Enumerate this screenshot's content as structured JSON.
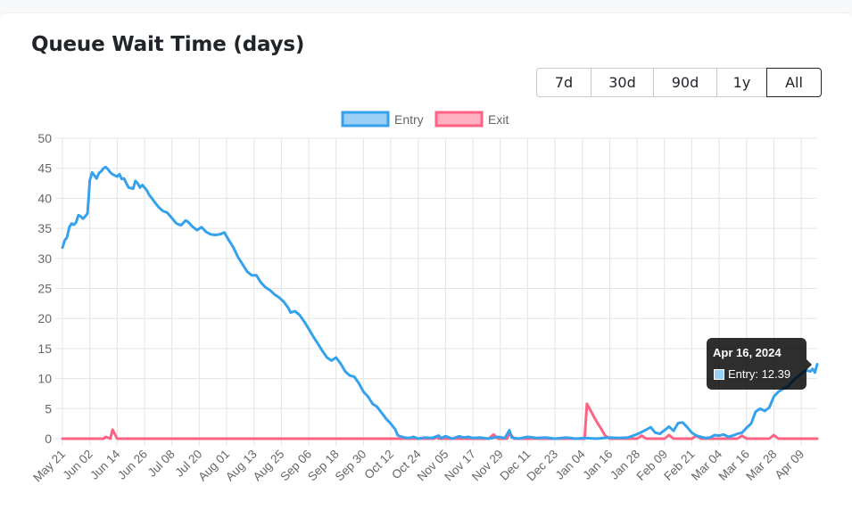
{
  "title": "Queue Wait Time (days)",
  "range_buttons": [
    {
      "label": "7d",
      "active": false
    },
    {
      "label": "30d",
      "active": false
    },
    {
      "label": "90d",
      "active": false
    },
    {
      "label": "1y",
      "active": false
    },
    {
      "label": "All",
      "active": true
    }
  ],
  "tooltip": {
    "title": "Apr 16, 2024",
    "body": "Entry: 12.39"
  },
  "chart_data": {
    "type": "line",
    "title": "",
    "xlabel": "",
    "ylabel": "",
    "ylim": [
      0,
      50
    ],
    "yticks": [
      0,
      5,
      10,
      15,
      20,
      25,
      30,
      35,
      40,
      45,
      50
    ],
    "grid": true,
    "legend_position": "top",
    "x_start": "2023-05-21",
    "x_end": "2024-04-16",
    "x_ticks": [
      "May 21",
      "Jun 02",
      "Jun 14",
      "Jun 26",
      "Jul 08",
      "Jul 20",
      "Aug 01",
      "Aug 13",
      "Aug 25",
      "Sep 06",
      "Sep 18",
      "Sep 30",
      "Oct 12",
      "Oct 24",
      "Nov 05",
      "Nov 17",
      "Nov 29",
      "Dec 11",
      "Dec 23",
      "Jan 04",
      "Jan 16",
      "Jan 28",
      "Feb 09",
      "Feb 21",
      "Mar 04",
      "Mar 16",
      "Mar 28",
      "Apr 09"
    ],
    "series": [
      {
        "name": "Entry",
        "color": "#36a2eb",
        "fill": "#9ad0f5",
        "points": [
          [
            "2023-05-21",
            31.8
          ],
          [
            "2023-05-22",
            33.0
          ],
          [
            "2023-05-23",
            33.5
          ],
          [
            "2023-05-24",
            35.2
          ],
          [
            "2023-05-25",
            35.8
          ],
          [
            "2023-05-26",
            35.6
          ],
          [
            "2023-05-27",
            36.0
          ],
          [
            "2023-05-28",
            37.2
          ],
          [
            "2023-05-29",
            37.0
          ],
          [
            "2023-05-30",
            36.6
          ],
          [
            "2023-05-31",
            37.0
          ],
          [
            "2023-06-01",
            37.5
          ],
          [
            "2023-06-02",
            43.0
          ],
          [
            "2023-06-03",
            44.3
          ],
          [
            "2023-06-04",
            43.8
          ],
          [
            "2023-06-05",
            43.3
          ],
          [
            "2023-06-06",
            44.2
          ],
          [
            "2023-06-07",
            44.5
          ],
          [
            "2023-06-08",
            45.0
          ],
          [
            "2023-06-09",
            45.2
          ],
          [
            "2023-06-10",
            44.8
          ],
          [
            "2023-06-11",
            44.3
          ],
          [
            "2023-06-12",
            44.0
          ],
          [
            "2023-06-13",
            43.8
          ],
          [
            "2023-06-14",
            43.6
          ],
          [
            "2023-06-15",
            44.0
          ],
          [
            "2023-06-16",
            43.2
          ],
          [
            "2023-06-17",
            43.3
          ],
          [
            "2023-06-18",
            42.5
          ],
          [
            "2023-06-19",
            41.8
          ],
          [
            "2023-06-20",
            41.7
          ],
          [
            "2023-06-21",
            41.6
          ],
          [
            "2023-06-22",
            42.9
          ],
          [
            "2023-06-23",
            42.5
          ],
          [
            "2023-06-24",
            41.8
          ],
          [
            "2023-06-25",
            42.2
          ],
          [
            "2023-06-26",
            41.8
          ],
          [
            "2023-06-27",
            41.3
          ],
          [
            "2023-06-28",
            40.6
          ],
          [
            "2023-06-29",
            40.1
          ],
          [
            "2023-06-30",
            39.6
          ],
          [
            "2023-07-02",
            38.6
          ],
          [
            "2023-07-04",
            37.9
          ],
          [
            "2023-07-06",
            37.6
          ],
          [
            "2023-07-08",
            36.7
          ],
          [
            "2023-07-10",
            35.8
          ],
          [
            "2023-07-12",
            35.5
          ],
          [
            "2023-07-14",
            36.3
          ],
          [
            "2023-07-15",
            36.1
          ],
          [
            "2023-07-17",
            35.3
          ],
          [
            "2023-07-19",
            34.7
          ],
          [
            "2023-07-21",
            35.2
          ],
          [
            "2023-07-23",
            34.4
          ],
          [
            "2023-07-25",
            34.0
          ],
          [
            "2023-07-27",
            33.9
          ],
          [
            "2023-07-29",
            34.0
          ],
          [
            "2023-07-31",
            34.3
          ],
          [
            "2023-08-02",
            33.0
          ],
          [
            "2023-08-04",
            31.8
          ],
          [
            "2023-08-06",
            30.2
          ],
          [
            "2023-08-08",
            29.0
          ],
          [
            "2023-08-10",
            27.8
          ],
          [
            "2023-08-12",
            27.2
          ],
          [
            "2023-08-14",
            27.2
          ],
          [
            "2023-08-16",
            26.0
          ],
          [
            "2023-08-18",
            25.2
          ],
          [
            "2023-08-20",
            24.7
          ],
          [
            "2023-08-22",
            24.0
          ],
          [
            "2023-08-24",
            23.5
          ],
          [
            "2023-08-26",
            22.8
          ],
          [
            "2023-08-28",
            21.8
          ],
          [
            "2023-08-29",
            21.0
          ],
          [
            "2023-08-31",
            21.2
          ],
          [
            "2023-09-02",
            20.6
          ],
          [
            "2023-09-04",
            19.5
          ],
          [
            "2023-09-06",
            18.3
          ],
          [
            "2023-09-08",
            17.0
          ],
          [
            "2023-09-10",
            15.8
          ],
          [
            "2023-09-12",
            14.6
          ],
          [
            "2023-09-14",
            13.5
          ],
          [
            "2023-09-16",
            13.0
          ],
          [
            "2023-09-18",
            13.5
          ],
          [
            "2023-09-20",
            12.5
          ],
          [
            "2023-09-22",
            11.2
          ],
          [
            "2023-09-24",
            10.5
          ],
          [
            "2023-09-26",
            10.3
          ],
          [
            "2023-09-28",
            9.2
          ],
          [
            "2023-09-30",
            7.8
          ],
          [
            "2023-10-02",
            7.0
          ],
          [
            "2023-10-04",
            5.8
          ],
          [
            "2023-10-06",
            5.3
          ],
          [
            "2023-10-08",
            4.3
          ],
          [
            "2023-10-10",
            3.3
          ],
          [
            "2023-10-12",
            2.5
          ],
          [
            "2023-10-14",
            1.5
          ],
          [
            "2023-10-15",
            0.6
          ],
          [
            "2023-10-16",
            0.4
          ],
          [
            "2023-10-18",
            0.2
          ],
          [
            "2023-10-20",
            0.1
          ],
          [
            "2023-10-22",
            0.3
          ],
          [
            "2023-10-24",
            0.0
          ],
          [
            "2023-10-27",
            0.2
          ],
          [
            "2023-10-30",
            0.1
          ],
          [
            "2023-11-02",
            0.5
          ],
          [
            "2023-11-03",
            0.1
          ],
          [
            "2023-11-05",
            0.4
          ],
          [
            "2023-11-08",
            0.0
          ],
          [
            "2023-11-11",
            0.4
          ],
          [
            "2023-11-13",
            0.2
          ],
          [
            "2023-11-15",
            0.3
          ],
          [
            "2023-11-17",
            0.1
          ],
          [
            "2023-11-20",
            0.2
          ],
          [
            "2023-11-24",
            0.0
          ],
          [
            "2023-11-28",
            0.3
          ],
          [
            "2023-12-01",
            0.1
          ],
          [
            "2023-12-03",
            1.4
          ],
          [
            "2023-12-04",
            0.2
          ],
          [
            "2023-12-07",
            0.0
          ],
          [
            "2023-12-11",
            0.3
          ],
          [
            "2023-12-15",
            0.1
          ],
          [
            "2023-12-19",
            0.2
          ],
          [
            "2023-12-23",
            0.0
          ],
          [
            "2023-12-28",
            0.2
          ],
          [
            "2024-01-01",
            0.0
          ],
          [
            "2024-01-05",
            0.1
          ],
          [
            "2024-01-10",
            0.0
          ],
          [
            "2024-01-16",
            0.2
          ],
          [
            "2024-01-20",
            0.1
          ],
          [
            "2024-01-24",
            0.2
          ],
          [
            "2024-01-27",
            0.6
          ],
          [
            "2024-01-29",
            0.9
          ],
          [
            "2024-02-01",
            1.5
          ],
          [
            "2024-02-03",
            1.9
          ],
          [
            "2024-02-05",
            1.0
          ],
          [
            "2024-02-07",
            0.8
          ],
          [
            "2024-02-09",
            1.4
          ],
          [
            "2024-02-11",
            2.0
          ],
          [
            "2024-02-13",
            1.3
          ],
          [
            "2024-02-15",
            2.6
          ],
          [
            "2024-02-17",
            2.7
          ],
          [
            "2024-02-19",
            1.9
          ],
          [
            "2024-02-21",
            1.0
          ],
          [
            "2024-02-23",
            0.5
          ],
          [
            "2024-02-25",
            0.3
          ],
          [
            "2024-02-27",
            0.1
          ],
          [
            "2024-02-29",
            0.2
          ],
          [
            "2024-03-02",
            0.6
          ],
          [
            "2024-03-04",
            0.5
          ],
          [
            "2024-03-06",
            0.7
          ],
          [
            "2024-03-08",
            0.3
          ],
          [
            "2024-03-10",
            0.5
          ],
          [
            "2024-03-12",
            0.8
          ],
          [
            "2024-03-14",
            1.0
          ],
          [
            "2024-03-16",
            1.8
          ],
          [
            "2024-03-18",
            2.5
          ],
          [
            "2024-03-20",
            4.5
          ],
          [
            "2024-03-22",
            5.0
          ],
          [
            "2024-03-24",
            4.6
          ],
          [
            "2024-03-26",
            5.2
          ],
          [
            "2024-03-28",
            7.0
          ],
          [
            "2024-03-30",
            7.8
          ],
          [
            "2024-04-01",
            8.3
          ],
          [
            "2024-04-03",
            8.6
          ],
          [
            "2024-04-05",
            9.5
          ],
          [
            "2024-04-07",
            10.2
          ],
          [
            "2024-04-09",
            10.8
          ],
          [
            "2024-04-11",
            11.4
          ],
          [
            "2024-04-13",
            11.2
          ],
          [
            "2024-04-14",
            11.6
          ],
          [
            "2024-04-15",
            11.0
          ],
          [
            "2024-04-16",
            12.39
          ]
        ]
      },
      {
        "name": "Exit",
        "color": "#ff6384",
        "fill": "#ffb1c1",
        "points": [
          [
            "2023-05-21",
            0
          ],
          [
            "2023-06-08",
            0
          ],
          [
            "2023-06-09",
            0.3
          ],
          [
            "2023-06-11",
            0
          ],
          [
            "2023-06-12",
            1.5
          ],
          [
            "2023-06-14",
            0
          ],
          [
            "2023-10-31",
            0
          ],
          [
            "2023-11-01",
            0.3
          ],
          [
            "2023-11-02",
            0
          ],
          [
            "2023-11-24",
            0
          ],
          [
            "2023-11-26",
            0.7
          ],
          [
            "2023-11-28",
            0
          ],
          [
            "2023-12-02",
            0
          ],
          [
            "2023-12-03",
            1.0
          ],
          [
            "2023-12-05",
            0
          ],
          [
            "2024-01-05",
            0
          ],
          [
            "2024-01-06",
            5.8
          ],
          [
            "2024-01-10",
            3.0
          ],
          [
            "2024-01-12",
            1.8
          ],
          [
            "2024-01-14",
            0.5
          ],
          [
            "2024-01-16",
            0
          ],
          [
            "2024-01-28",
            0
          ],
          [
            "2024-01-30",
            0.5
          ],
          [
            "2024-02-01",
            0
          ],
          [
            "2024-02-09",
            0
          ],
          [
            "2024-02-11",
            0.6
          ],
          [
            "2024-02-13",
            0
          ],
          [
            "2024-02-21",
            0
          ],
          [
            "2024-02-23",
            0.5
          ],
          [
            "2024-02-25",
            0
          ],
          [
            "2024-03-12",
            0
          ],
          [
            "2024-03-14",
            0.5
          ],
          [
            "2024-03-16",
            0
          ],
          [
            "2024-03-26",
            0
          ],
          [
            "2024-03-28",
            0.6
          ],
          [
            "2024-03-30",
            0
          ],
          [
            "2024-04-16",
            0
          ]
        ]
      }
    ]
  }
}
